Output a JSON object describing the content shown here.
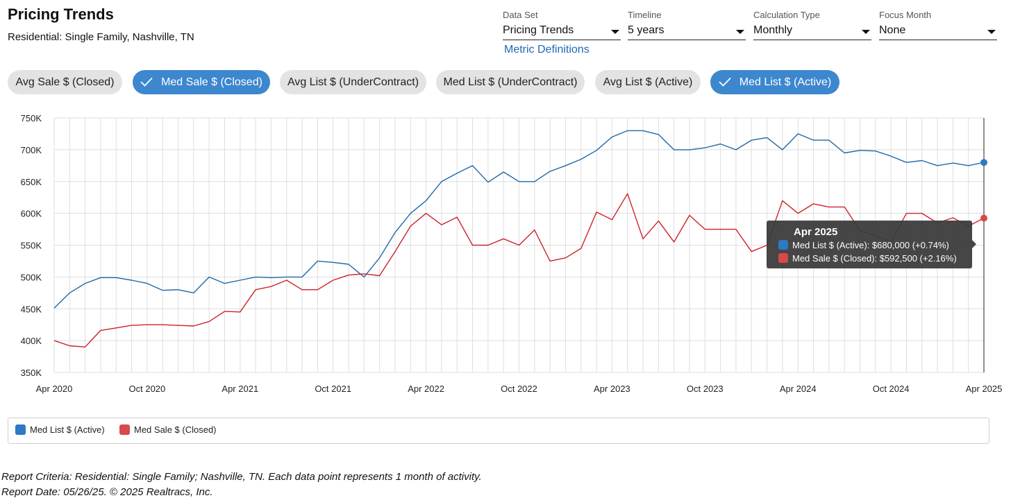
{
  "header": {
    "title": "Pricing Trends",
    "subtitle": "Residential: Single Family, Nashville, TN"
  },
  "controls": {
    "dataset": {
      "label": "Data Set",
      "value": "Pricing Trends"
    },
    "timeline": {
      "label": "Timeline",
      "value": "5 years"
    },
    "calc_type": {
      "label": "Calculation Type",
      "value": "Monthly"
    },
    "focus_month": {
      "label": "Focus Month",
      "value": "None"
    },
    "metric_link": "Metric Definitions"
  },
  "pills": [
    {
      "label": "Avg Sale $ (Closed)",
      "selected": false
    },
    {
      "label": "Med Sale $ (Closed)",
      "selected": true
    },
    {
      "label": "Avg List $ (UnderContract)",
      "selected": false
    },
    {
      "label": "Med List $ (UnderContract)",
      "selected": false
    },
    {
      "label": "Avg List $ (Active)",
      "selected": false
    },
    {
      "label": "Med List $ (Active)",
      "selected": true
    }
  ],
  "colors": {
    "blue": "#1f67a8",
    "red": "#cc2229",
    "pill_on": "#3d87cf"
  },
  "tooltip": {
    "title": "Apr 2025",
    "rows": [
      "Med List $ (Active): $680,000 (+0.74%)",
      "Med Sale $ (Closed): $592,500 (+2.16%)"
    ]
  },
  "legend": [
    "Med List $ (Active)",
    "Med Sale $ (Closed)"
  ],
  "footer": {
    "criteria": "Report Criteria: Residential: Single Family; Nashville, TN. Each data point represents 1 month of activity.",
    "date": "Report Date: 05/26/25. © 2025 Realtracs, Inc."
  },
  "chart_data": {
    "type": "line",
    "x_tick_labels": [
      "Apr 2020",
      "Oct 2020",
      "Apr 2021",
      "Oct 2021",
      "Apr 2022",
      "Oct 2022",
      "Apr 2023",
      "Oct 2023",
      "Apr 2024",
      "Oct 2024",
      "Apr 2025"
    ],
    "x_start": "Apr 2020",
    "x_end": "Apr 2025",
    "months": 61,
    "y_tick_labels": [
      "350K",
      "400K",
      "450K",
      "500K",
      "550K",
      "600K",
      "650K",
      "700K",
      "750K"
    ],
    "ylim": [
      350000,
      750000
    ],
    "grid": true,
    "series": [
      {
        "name": "Med List $ (Active)",
        "color": "#1f67a8",
        "values": [
          451000,
          475000,
          490000,
          499000,
          499000,
          495000,
          490000,
          479000,
          480000,
          475000,
          500000,
          490000,
          495000,
          500000,
          499000,
          500000,
          500000,
          525000,
          523000,
          520000,
          500000,
          530000,
          570000,
          600000,
          620000,
          650000,
          663000,
          675000,
          649000,
          665000,
          650000,
          650000,
          666000,
          675000,
          685000,
          699000,
          720000,
          730000,
          730000,
          724000,
          700000,
          700000,
          703000,
          709000,
          700000,
          715000,
          719000,
          700000,
          725000,
          715000,
          715000,
          695000,
          699000,
          698000,
          690000,
          680000,
          683000,
          675000,
          679000,
          675000,
          680000
        ]
      },
      {
        "name": "Med Sale $ (Closed)",
        "color": "#cc2229",
        "values": [
          400000,
          392000,
          390000,
          416000,
          420000,
          424000,
          425000,
          425000,
          424000,
          423000,
          430000,
          446000,
          445000,
          480000,
          485000,
          495000,
          480000,
          480000,
          495000,
          503000,
          505000,
          502000,
          540000,
          580000,
          600000,
          582000,
          594000,
          550000,
          550000,
          560000,
          550000,
          574000,
          525000,
          530000,
          545000,
          602000,
          590000,
          631000,
          560000,
          588000,
          555000,
          597000,
          575000,
          575000,
          575000,
          540000,
          550000,
          620000,
          600000,
          615000,
          610000,
          610000,
          573000,
          565000,
          555000,
          600000,
          600000,
          585000,
          593000,
          580000,
          592500
        ]
      }
    ]
  }
}
